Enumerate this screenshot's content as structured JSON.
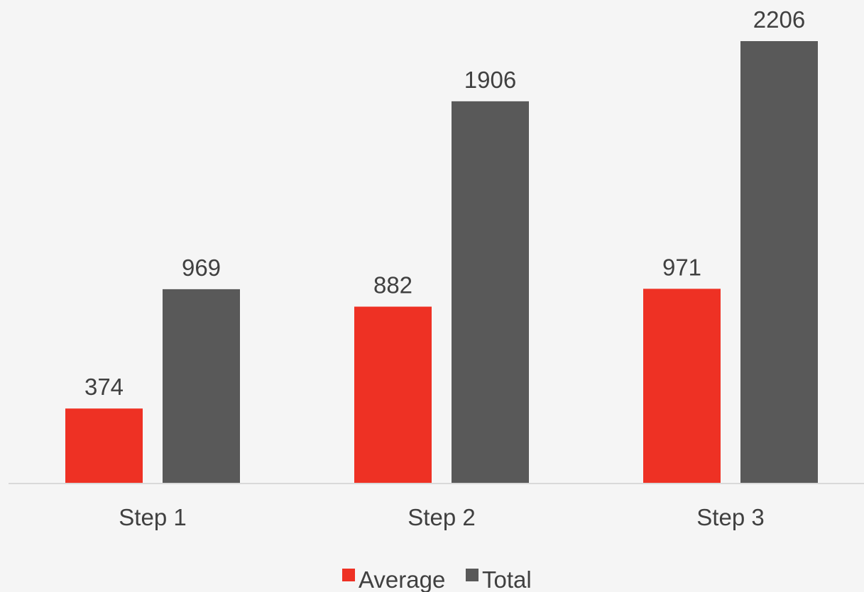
{
  "chart_data": {
    "type": "bar",
    "categories": [
      "Step 1",
      "Step 2",
      "Step 3"
    ],
    "series": [
      {
        "name": "Average",
        "values": [
          374,
          882,
          971
        ],
        "color": "#ee3124"
      },
      {
        "name": "Total",
        "values": [
          969,
          1906,
          2206
        ],
        "color": "#595959"
      }
    ],
    "title": "",
    "xlabel": "",
    "ylabel": "",
    "ylim": [
      0,
      2400
    ],
    "grid": false,
    "legend_position": "bottom",
    "background_color": "#f5f5f5",
    "axis_color": "#d9d9d9",
    "text_color": "#404040"
  }
}
